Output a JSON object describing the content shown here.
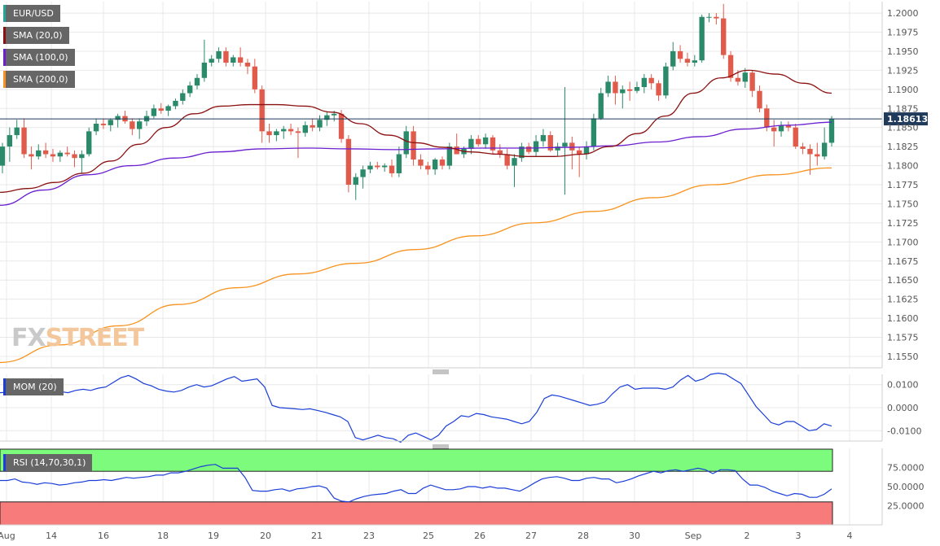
{
  "watermark": {
    "part1": "FX",
    "part2": "STREET"
  },
  "legends": {
    "pair": {
      "label": "EUR/USD",
      "color": "#26a69a"
    },
    "sma20": {
      "label": "SMA (20,0)",
      "color": "#8b1010"
    },
    "sma100": {
      "label": "SMA (100,0)",
      "color": "#6a1fd0"
    },
    "sma200": {
      "label": "SMA (200,0)",
      "color": "#f7931e"
    },
    "mom": {
      "label": "MOM (20)",
      "color": "#1a3ed8"
    },
    "rsi": {
      "label": "RSI (14,70,30,1)",
      "color": "#1a3ed8"
    }
  },
  "colors": {
    "up": "#2a8a6a",
    "down": "#e05b4b",
    "grid": "#e8e8e8",
    "rsi_overbought_zone": "#7dfb7d",
    "rsi_oversold_zone": "#f77b7b",
    "price_line": "#1f3a5a"
  },
  "chart_data": [
    {
      "type": "candlestick",
      "title": "EUR/USD",
      "ylim": [
        1.1535,
        1.2015
      ],
      "grid": true,
      "current_price": 1.18613,
      "current_price_label": "1.18613",
      "y_ticks": [
        "1.2000",
        "1.1975",
        "1.1950",
        "1.1925",
        "1.1900",
        "1.1875",
        "1.1850",
        "1.1825",
        "1.1800",
        "1.1775",
        "1.1750",
        "1.1725",
        "1.1700",
        "1.1675",
        "1.1650",
        "1.1625",
        "1.1600",
        "1.1575",
        "1.1550"
      ],
      "x_ticks": [
        "Aug",
        "14",
        "16",
        "18",
        "19",
        "20",
        "21",
        "23",
        "25",
        "26",
        "27",
        "28",
        "30",
        "Sep",
        "2",
        "3",
        "4"
      ],
      "candles": [
        [
          1.18,
          1.183,
          1.179,
          1.1825
        ],
        [
          1.1825,
          1.185,
          1.1805,
          1.184
        ],
        [
          1.184,
          1.186,
          1.1835,
          1.185
        ],
        [
          1.185,
          1.1862,
          1.181,
          1.1815
        ],
        [
          1.1815,
          1.1825,
          1.1795,
          1.1812
        ],
        [
          1.1812,
          1.1828,
          1.1808,
          1.182
        ],
        [
          1.182,
          1.183,
          1.181,
          1.1815
        ],
        [
          1.1815,
          1.1822,
          1.1805,
          1.1812
        ],
        [
          1.1812,
          1.182,
          1.1805,
          1.1817
        ],
        [
          1.1817,
          1.1825,
          1.1812,
          1.1815
        ],
        [
          1.1815,
          1.182,
          1.1798,
          1.181
        ],
        [
          1.181,
          1.182,
          1.179,
          1.1815
        ],
        [
          1.1815,
          1.185,
          1.1812,
          1.1845
        ],
        [
          1.1845,
          1.1862,
          1.184,
          1.1855
        ],
        [
          1.1855,
          1.1862,
          1.1848,
          1.1853
        ],
        [
          1.1853,
          1.1862,
          1.1845,
          1.186
        ],
        [
          1.186,
          1.1868,
          1.185,
          1.1865
        ],
        [
          1.1865,
          1.1872,
          1.1855,
          1.1858
        ],
        [
          1.1858,
          1.1862,
          1.184,
          1.1848
        ],
        [
          1.1848,
          1.1862,
          1.1835,
          1.1858
        ],
        [
          1.1858,
          1.1872,
          1.1852,
          1.1865
        ],
        [
          1.1865,
          1.188,
          1.1862,
          1.1875
        ],
        [
          1.1875,
          1.1882,
          1.1868,
          1.1872
        ],
        [
          1.1872,
          1.188,
          1.1865,
          1.1878
        ],
        [
          1.1878,
          1.1888,
          1.1874,
          1.1885
        ],
        [
          1.1885,
          1.19,
          1.188,
          1.1895
        ],
        [
          1.1895,
          1.191,
          1.189,
          1.1905
        ],
        [
          1.1905,
          1.192,
          1.19,
          1.1915
        ],
        [
          1.1915,
          1.1965,
          1.191,
          1.1935
        ],
        [
          1.1935,
          1.1945,
          1.193,
          1.194
        ],
        [
          1.194,
          1.1955,
          1.1935,
          1.195
        ],
        [
          1.195,
          1.1955,
          1.193,
          1.1935
        ],
        [
          1.1935,
          1.1945,
          1.193,
          1.1942
        ],
        [
          1.1942,
          1.1955,
          1.193,
          1.1935
        ],
        [
          1.1935,
          1.194,
          1.192,
          1.193
        ],
        [
          1.193,
          1.194,
          1.1895,
          1.19
        ],
        [
          1.19,
          1.1905,
          1.183,
          1.1845
        ],
        [
          1.1845,
          1.1855,
          1.183,
          1.184
        ],
        [
          1.184,
          1.1848,
          1.1832,
          1.1845
        ],
        [
          1.1845,
          1.1852,
          1.1835,
          1.1848
        ],
        [
          1.1848,
          1.1855,
          1.184,
          1.1845
        ],
        [
          1.1845,
          1.185,
          1.181,
          1.1843
        ],
        [
          1.1843,
          1.1858,
          1.1838,
          1.1853
        ],
        [
          1.1853,
          1.1862,
          1.1845,
          1.185
        ],
        [
          1.185,
          1.1866,
          1.1845,
          1.186
        ],
        [
          1.186,
          1.187,
          1.1852,
          1.1866
        ],
        [
          1.1866,
          1.1872,
          1.1858,
          1.1868
        ],
        [
          1.1868,
          1.1873,
          1.183,
          1.1835
        ],
        [
          1.1835,
          1.184,
          1.1765,
          1.1775
        ],
        [
          1.1775,
          1.179,
          1.1755,
          1.1785
        ],
        [
          1.1785,
          1.18,
          1.177,
          1.1795
        ],
        [
          1.1795,
          1.1805,
          1.179,
          1.18
        ],
        [
          1.18,
          1.1805,
          1.1795,
          1.1798
        ],
        [
          1.1798,
          1.1803,
          1.1792,
          1.18
        ],
        [
          1.18,
          1.1808,
          1.1785,
          1.179
        ],
        [
          1.179,
          1.1825,
          1.1785,
          1.1815
        ],
        [
          1.1815,
          1.1852,
          1.181,
          1.1845
        ],
        [
          1.1845,
          1.1852,
          1.18,
          1.1808
        ],
        [
          1.1808,
          1.1815,
          1.1795,
          1.18
        ],
        [
          1.18,
          1.1805,
          1.1788,
          1.1795
        ],
        [
          1.1795,
          1.181,
          1.1788,
          1.1808
        ],
        [
          1.1808,
          1.1812,
          1.1795,
          1.18
        ],
        [
          1.18,
          1.183,
          1.1795,
          1.1825
        ],
        [
          1.1825,
          1.1842,
          1.1815,
          1.1815
        ],
        [
          1.1815,
          1.1825,
          1.181,
          1.1822
        ],
        [
          1.1822,
          1.184,
          1.1815,
          1.1835
        ],
        [
          1.1835,
          1.184,
          1.1825,
          1.1828
        ],
        [
          1.1828,
          1.1842,
          1.1822,
          1.1837
        ],
        [
          1.1837,
          1.184,
          1.1815,
          1.182
        ],
        [
          1.182,
          1.1828,
          1.181,
          1.1815
        ],
        [
          1.1815,
          1.1822,
          1.1795,
          1.18
        ],
        [
          1.18,
          1.1815,
          1.1772,
          1.181
        ],
        [
          1.181,
          1.183,
          1.1805,
          1.1825
        ],
        [
          1.1825,
          1.183,
          1.1815,
          1.1818
        ],
        [
          1.1818,
          1.184,
          1.1812,
          1.1832
        ],
        [
          1.1832,
          1.1848,
          1.1825,
          1.184
        ],
        [
          1.184,
          1.1845,
          1.1818,
          1.182
        ],
        [
          1.182,
          1.183,
          1.1812,
          1.1825
        ],
        [
          1.1825,
          1.1903,
          1.1762,
          1.183
        ],
        [
          1.183,
          1.1838,
          1.1795,
          1.182
        ],
        [
          1.182,
          1.1825,
          1.1785,
          1.1815
        ],
        [
          1.1815,
          1.1832,
          1.1808,
          1.1825
        ],
        [
          1.1825,
          1.1868,
          1.182,
          1.1862
        ],
        [
          1.1862,
          1.1902,
          1.186,
          1.1895
        ],
        [
          1.1895,
          1.1918,
          1.189,
          1.191
        ],
        [
          1.191,
          1.1918,
          1.188,
          1.1895
        ],
        [
          1.1895,
          1.1905,
          1.1875,
          1.19
        ],
        [
          1.19,
          1.191,
          1.1885,
          1.1898
        ],
        [
          1.1898,
          1.191,
          1.1895,
          1.1903
        ],
        [
          1.1903,
          1.192,
          1.1895,
          1.1915
        ],
        [
          1.1915,
          1.192,
          1.19,
          1.1908
        ],
        [
          1.1908,
          1.1912,
          1.1885,
          1.1892
        ],
        [
          1.1892,
          1.1935,
          1.1888,
          1.193
        ],
        [
          1.193,
          1.1962,
          1.1925,
          1.195
        ],
        [
          1.195,
          1.1958,
          1.1935,
          1.194
        ],
        [
          1.194,
          1.1948,
          1.193,
          1.1935
        ],
        [
          1.1935,
          1.1945,
          1.193,
          1.1938
        ],
        [
          1.1938,
          1.1998,
          1.1935,
          1.1995
        ],
        [
          1.1995,
          1.2,
          1.1988,
          1.1995
        ],
        [
          1.1995,
          1.2,
          1.1985,
          1.1993
        ],
        [
          1.1993,
          1.2012,
          1.194,
          1.1945
        ],
        [
          1.1945,
          1.195,
          1.191,
          1.1915
        ],
        [
          1.1915,
          1.1925,
          1.1905,
          1.191
        ],
        [
          1.191,
          1.1928,
          1.1902,
          1.1922
        ],
        [
          1.1922,
          1.1925,
          1.189,
          1.1898
        ],
        [
          1.1898,
          1.1905,
          1.187,
          1.1875
        ],
        [
          1.1875,
          1.188,
          1.1845,
          1.185
        ],
        [
          1.185,
          1.186,
          1.1825,
          1.1845
        ],
        [
          1.1845,
          1.1858,
          1.1838,
          1.1853
        ],
        [
          1.1853,
          1.1858,
          1.1845,
          1.185
        ],
        [
          1.185,
          1.1855,
          1.1822,
          1.1825
        ],
        [
          1.1825,
          1.183,
          1.1815,
          1.1822
        ],
        [
          1.1822,
          1.1828,
          1.1788,
          1.1815
        ],
        [
          1.1815,
          1.183,
          1.18,
          1.1812
        ],
        [
          1.1812,
          1.185,
          1.1808,
          1.183
        ],
        [
          1.183,
          1.1865,
          1.1825,
          1.1861
        ]
      ],
      "sma20": [
        1.1765,
        1.177,
        1.1778,
        1.179,
        1.1806,
        1.1828,
        1.185,
        1.1868,
        1.1878,
        1.188,
        1.188,
        1.1878,
        1.187,
        1.1855,
        1.184,
        1.183,
        1.1824,
        1.1818,
        1.1815,
        1.1812,
        1.1812,
        1.1815,
        1.1825,
        1.1842,
        1.1865,
        1.1895,
        1.1915,
        1.1925,
        1.192,
        1.1908,
        1.1895
      ],
      "sma100": [
        1.1748,
        1.1768,
        1.1788,
        1.18,
        1.181,
        1.1818,
        1.1822,
        1.1823,
        1.1822,
        1.1821,
        1.1822,
        1.1823,
        1.1823,
        1.1824,
        1.1826,
        1.1831,
        1.1838,
        1.1848,
        1.1853,
        1.1857
      ],
      "sma200": [
        1.1542,
        1.1565,
        1.159,
        1.1618,
        1.164,
        1.1658,
        1.1672,
        1.169,
        1.1708,
        1.1725,
        1.174,
        1.1758,
        1.1775,
        1.1788,
        1.1797
      ]
    },
    {
      "type": "line",
      "title": "MOM (20)",
      "ylim": [
        -0.0145,
        0.0145
      ],
      "y_ticks": [
        "0.0100",
        "0.0000",
        "-0.0100"
      ],
      "values": [
        0.0065,
        0.0068,
        0.007,
        0.0068,
        0.0067,
        0.0066,
        0.007,
        0.0075,
        0.007,
        0.0065,
        0.0075,
        0.008,
        0.0075,
        0.0085,
        0.009,
        0.011,
        0.013,
        0.014,
        0.0125,
        0.0105,
        0.0095,
        0.008,
        0.0072,
        0.0068,
        0.0075,
        0.009,
        0.01,
        0.009,
        0.0095,
        0.011,
        0.0125,
        0.0135,
        0.0115,
        0.012,
        0.0125,
        0.009,
        0.001,
        0.0,
        -0.0002,
        -0.0005,
        -0.0008,
        -0.0005,
        -0.0012,
        -0.002,
        -0.003,
        -0.004,
        -0.006,
        -0.013,
        -0.014,
        -0.013,
        -0.012,
        -0.013,
        -0.0135,
        -0.015,
        -0.012,
        -0.011,
        -0.0125,
        -0.014,
        -0.012,
        -0.008,
        -0.006,
        -0.0035,
        -0.004,
        -0.0025,
        -0.003,
        -0.004,
        -0.0045,
        -0.005,
        -0.006,
        -0.007,
        -0.006,
        -0.002,
        0.004,
        0.0055,
        0.005,
        0.004,
        0.003,
        0.002,
        0.001,
        0.0015,
        0.0025,
        0.006,
        0.009,
        0.01,
        0.008,
        0.0085,
        0.0085,
        0.0085,
        0.008,
        0.009,
        0.012,
        0.014,
        0.0115,
        0.0125,
        0.0145,
        0.015,
        0.0145,
        0.0125,
        0.0105,
        0.0055,
        0.0005,
        -0.003,
        -0.0065,
        -0.0075,
        -0.006,
        -0.006,
        -0.008,
        -0.01,
        -0.0095,
        -0.007,
        -0.008
      ]
    },
    {
      "type": "line",
      "title": "RSI (14,70,30,1)",
      "ylim": [
        0,
        100
      ],
      "overbought": 70,
      "oversold": 30,
      "y_ticks": [
        "75.0000",
        "50.0000",
        "25.0000"
      ],
      "values": [
        58,
        58,
        60,
        56,
        55,
        53,
        55,
        54,
        52,
        53,
        55,
        56,
        58,
        58,
        59,
        58,
        60,
        62,
        61,
        62,
        63,
        65,
        65,
        68,
        68,
        70,
        73,
        76,
        78,
        79,
        74,
        74,
        74,
        62,
        45,
        44,
        44,
        46,
        47,
        44,
        47,
        48,
        50,
        51,
        48,
        35,
        31,
        30,
        34,
        37,
        39,
        40,
        41,
        44,
        46,
        41,
        41,
        48,
        52,
        49,
        46,
        46,
        47,
        50,
        50,
        48,
        50,
        48,
        48,
        46,
        44,
        49,
        55,
        60,
        62,
        63,
        61,
        58,
        58,
        61,
        62,
        60,
        60,
        55,
        57,
        60,
        64,
        67,
        70,
        68,
        71,
        72,
        70,
        72,
        74,
        72,
        67,
        72,
        72,
        71,
        60,
        52,
        52,
        49,
        44,
        41,
        38,
        41,
        40,
        36,
        36,
        40,
        47
      ]
    }
  ]
}
